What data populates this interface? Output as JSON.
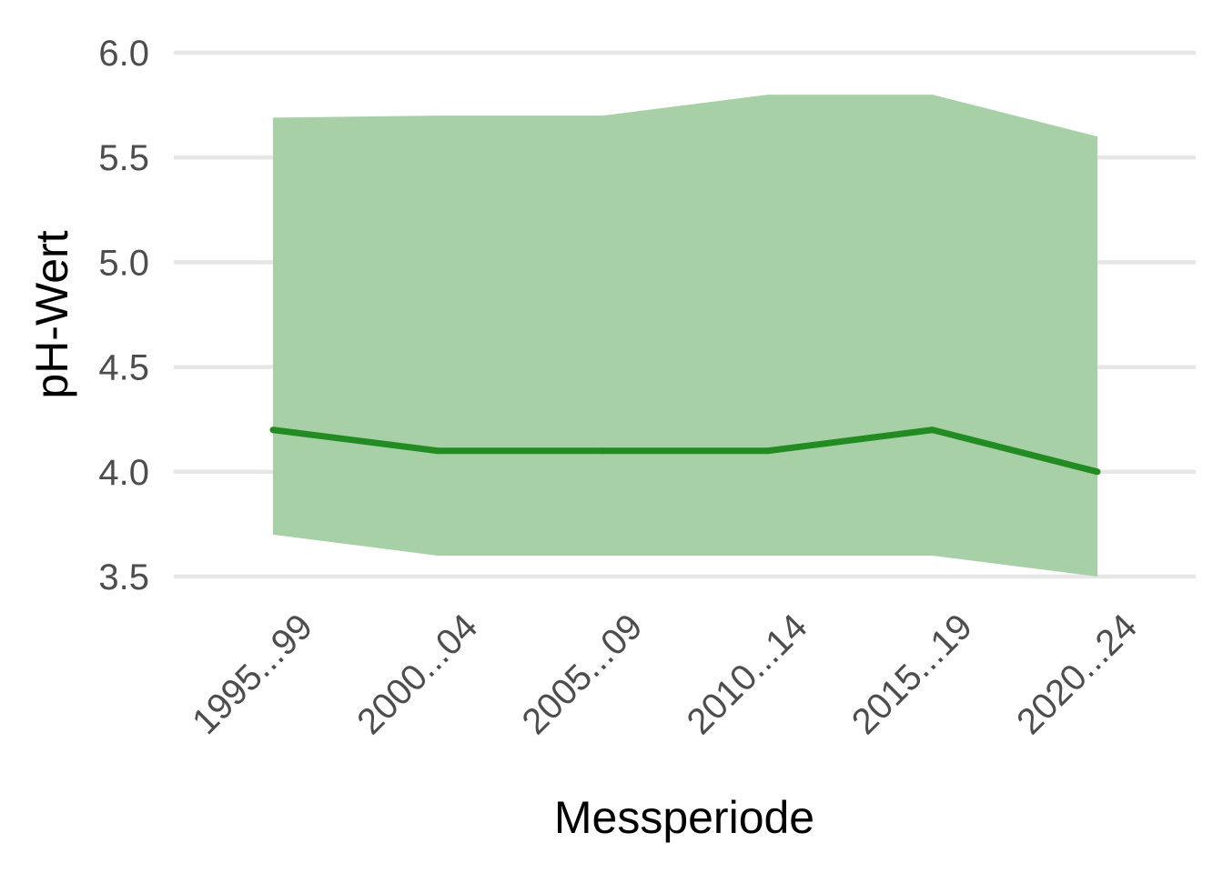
{
  "chart_data": {
    "type": "area",
    "title": "",
    "xlabel": "Messperiode",
    "ylabel": "pH-Wert",
    "categories": [
      "1995...99",
      "2000...04",
      "2005...09",
      "2010...14",
      "2015...19",
      "2020...24"
    ],
    "series": [
      {
        "kind": "line",
        "values": [
          4.2,
          4.1,
          4.1,
          4.1,
          4.2,
          4.0
        ]
      },
      {
        "kind": "range",
        "lower": [
          3.7,
          3.6,
          3.6,
          3.6,
          3.6,
          3.5
        ],
        "upper": [
          5.69,
          5.7,
          5.7,
          5.8,
          5.8,
          5.6
        ]
      }
    ],
    "yticks": [
      "3.5",
      "4.0",
      "4.5",
      "5.0",
      "5.5",
      "6.0"
    ],
    "ylim": [
      3.5,
      6.0
    ],
    "grid": true,
    "legend": "none",
    "colors": {
      "line": "#228b22",
      "band": "#a7d0a7",
      "grid": "#e6e6e6",
      "tick_text": "#4d4d4d",
      "axis_title": "#000000"
    }
  }
}
